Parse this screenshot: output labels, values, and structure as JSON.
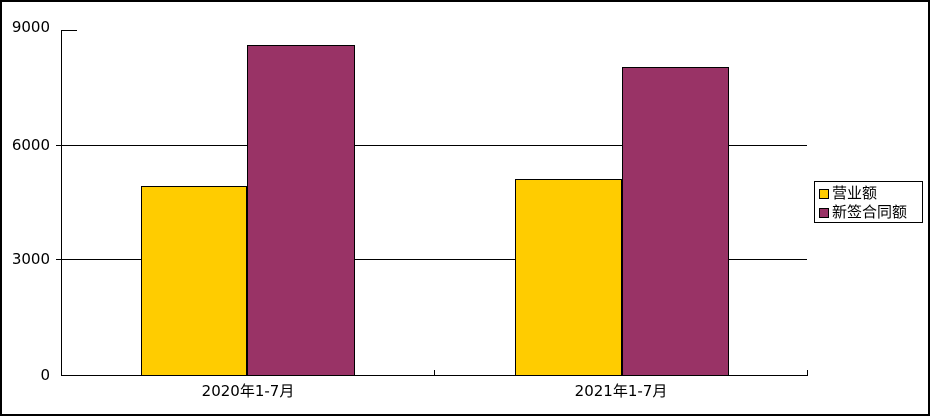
{
  "chart_data": {
    "type": "bar",
    "categories": [
      "2020年1-7月",
      "2021年1-7月"
    ],
    "series": [
      {
        "name": "营业额",
        "color": "#FFCC00",
        "values": [
          4956.6,
          5140.2
        ]
      },
      {
        "name": "新签合同额",
        "color": "#993366",
        "values": [
          8636.7,
          8062.9
        ]
      }
    ],
    "title": "",
    "xlabel": "",
    "ylabel": "",
    "ylim": [
      0,
      9000
    ],
    "yticks": [
      0,
      3000,
      6000,
      9000
    ],
    "grid": true,
    "legend_position": "right",
    "background_color": "#FFFFFF",
    "border_color": "#000000"
  },
  "labels": {
    "y_ticks": [
      "9000",
      "6000",
      "3000",
      "0"
    ]
  }
}
